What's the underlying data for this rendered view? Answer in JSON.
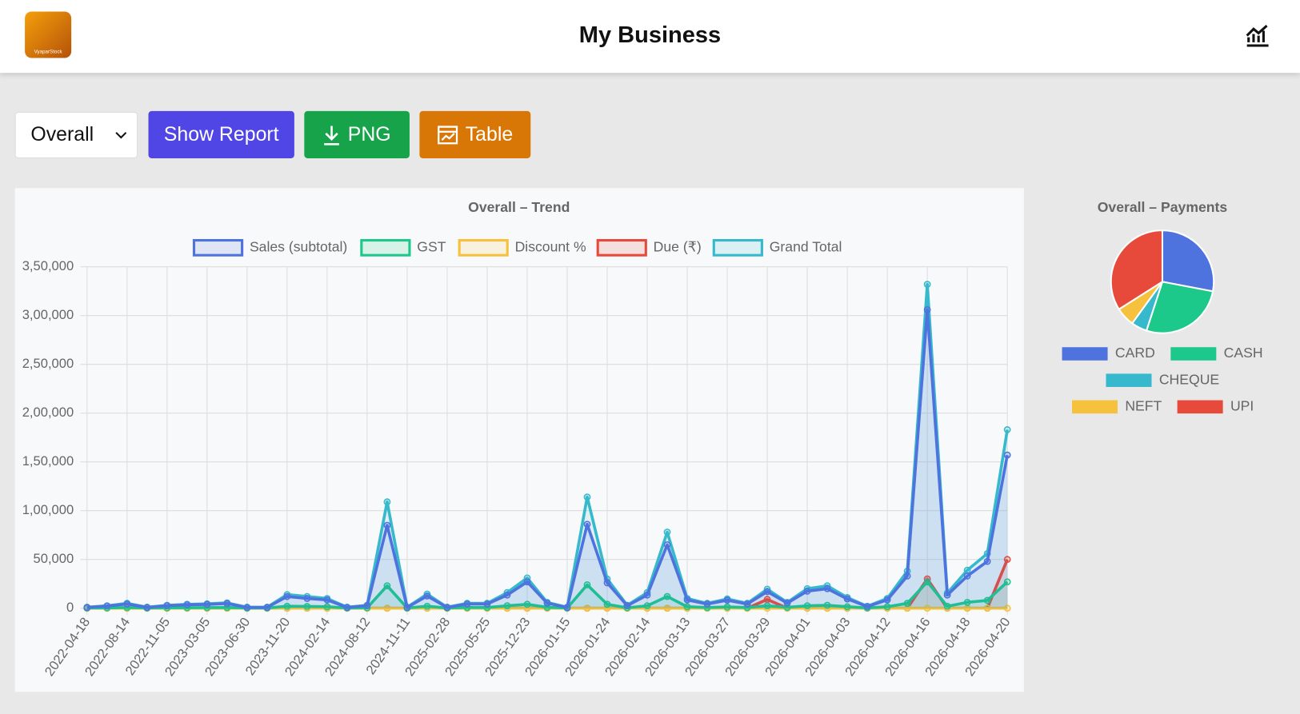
{
  "header": {
    "title": "My Business",
    "logo_text": "VyaparStock"
  },
  "controls": {
    "select": "Overall",
    "buttons": [
      "Show Report",
      "PNG",
      "Table"
    ]
  },
  "chart_data": [
    {
      "type": "line",
      "title": "Overall – Trend",
      "categories": [
        "2022-04-18",
        null,
        "2022-08-14",
        null,
        "2022-11-05",
        null,
        "2023-03-05",
        null,
        "2023-06-30",
        null,
        "2023-11-20",
        null,
        "2024-02-14",
        null,
        "2024-08-12",
        null,
        "2024-11-11",
        null,
        "2025-02-28",
        null,
        "2025-05-25",
        null,
        "2025-12-23",
        null,
        "2026-01-15",
        null,
        "2026-01-24",
        null,
        "2026-02-14",
        null,
        "2026-03-13",
        null,
        "2026-03-27",
        null,
        "2026-03-29",
        null,
        "2026-04-01",
        null,
        "2026-04-03",
        null,
        "2026-04-12",
        null,
        "2026-04-16",
        null,
        "2026-04-18",
        null,
        "2026-04-20"
      ],
      "series": [
        {
          "name": "Sales (subtotal)",
          "color": "#4e73df",
          "values": [
            800,
            2200,
            4300,
            800,
            2600,
            3500,
            3900,
            4800,
            800,
            800,
            12000,
            10000,
            8500,
            800,
            2600,
            85000,
            800,
            12500,
            800,
            4300,
            4300,
            13500,
            27000,
            5200,
            800,
            86000,
            26000,
            2600,
            13500,
            65000,
            8500,
            4300,
            8200,
            4300,
            17000,
            5200,
            17500,
            20000,
            9500,
            1700,
            8500,
            33000,
            306000,
            13500,
            33000,
            48000,
            157000
          ]
        },
        {
          "name": "GST",
          "color": "#1cc88a",
          "values": [
            200,
            300,
            700,
            200,
            400,
            500,
            600,
            700,
            200,
            200,
            2000,
            1800,
            1500,
            200,
            400,
            23000,
            200,
            2000,
            200,
            700,
            700,
            2500,
            4000,
            900,
            200,
            24000,
            4000,
            400,
            2500,
            12000,
            1500,
            700,
            1300,
            700,
            2500,
            900,
            2500,
            3000,
            1500,
            300,
            1500,
            5000,
            27000,
            2000,
            6000,
            8000,
            27000
          ]
        },
        {
          "name": "Discount %",
          "color": "#f6c23e",
          "values": [
            0,
            0,
            0,
            0,
            0,
            0,
            0,
            0,
            0,
            0,
            0,
            0,
            0,
            0,
            0,
            0,
            0,
            0,
            0,
            0,
            0,
            0,
            0,
            0,
            0,
            0,
            0,
            0,
            0,
            0,
            0,
            0,
            0,
            0,
            0,
            0,
            0,
            0,
            0,
            0,
            0,
            0,
            0,
            0,
            0,
            0,
            0
          ]
        },
        {
          "name": "Due (₹)",
          "color": "#e74a3b",
          "values": [
            0,
            0,
            0,
            0,
            0,
            0,
            0,
            0,
            0,
            0,
            0,
            0,
            0,
            0,
            0,
            0,
            0,
            0,
            0,
            0,
            0,
            0,
            0,
            0,
            0,
            0,
            0,
            0,
            0,
            0,
            0,
            0,
            0,
            0,
            9000,
            0,
            0,
            0,
            0,
            0,
            0,
            0,
            30000,
            0,
            0,
            0,
            50000
          ]
        },
        {
          "name": "Grand Total",
          "color": "#36b9cc",
          "values": [
            1000,
            2500,
            5000,
            1000,
            3000,
            4000,
            4500,
            5500,
            1000,
            1000,
            14000,
            12000,
            10000,
            1000,
            3000,
            109000,
            1000,
            14500,
            1000,
            5000,
            5000,
            16000,
            31000,
            6000,
            1000,
            114000,
            30000,
            3000,
            16000,
            78000,
            10000,
            5000,
            9500,
            5000,
            19500,
            6000,
            20000,
            23000,
            11000,
            2000,
            10000,
            38000,
            332000,
            15500,
            39000,
            56000,
            183000
          ]
        }
      ],
      "ylim": [
        0,
        350000
      ],
      "yticks": [
        0,
        {
          "value": 50000,
          "label": "50,000"
        },
        {
          "value": 100000,
          "label": "1,00,000"
        },
        {
          "value": 150000,
          "label": "1,50,000"
        },
        {
          "value": 200000,
          "label": "2,00,000"
        },
        {
          "value": 250000,
          "label": "2,50,000"
        },
        {
          "value": 300000,
          "label": "3,00,000"
        },
        {
          "value": 350000,
          "label": "3,50,000"
        }
      ],
      "grid": true
    },
    {
      "type": "pie",
      "title": "Overall – Payments",
      "categories": [
        "CARD",
        "CASH",
        "CHEQUE",
        "NEFT",
        "UPI"
      ],
      "values": [
        28,
        27,
        5,
        6,
        34
      ],
      "colors": [
        "#4e73df",
        "#1cc88a",
        "#36b9cc",
        "#f6c23e",
        "#e74a3b"
      ]
    }
  ]
}
